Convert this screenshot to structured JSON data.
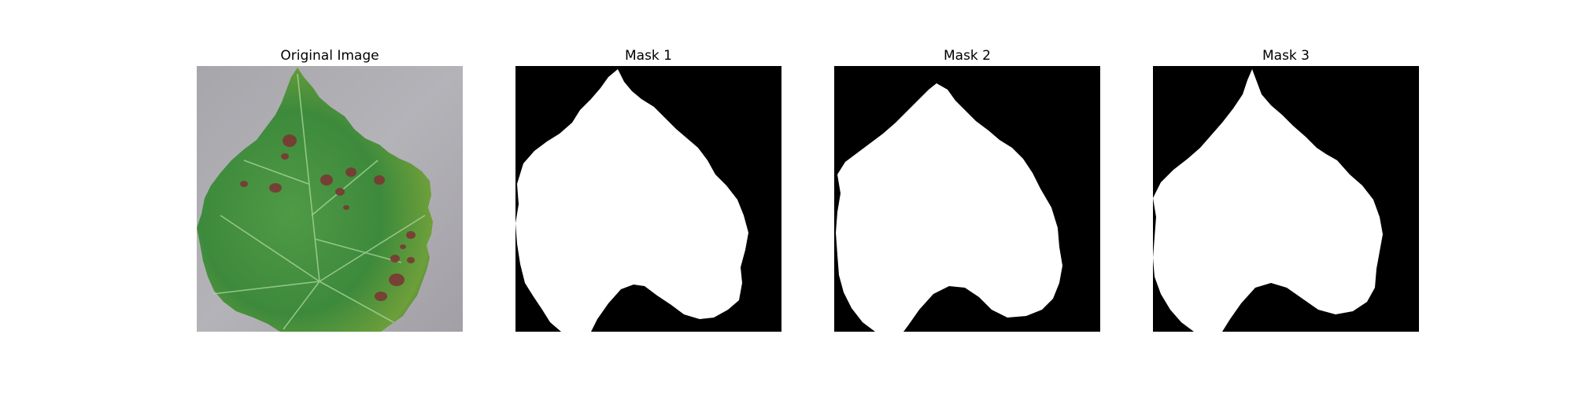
{
  "figure": {
    "panels": [
      {
        "title": "Original Image",
        "content": "grape leaf photograph with brown disease spots on grey background"
      },
      {
        "title": "Mask 1",
        "content": "binary segmentation mask (white leaf on black)"
      },
      {
        "title": "Mask 2",
        "content": "binary segmentation mask (white leaf on black)"
      },
      {
        "title": "Mask 3",
        "content": "binary segmentation mask (white leaf on black)"
      }
    ],
    "colors": {
      "mask_foreground": "#ffffff",
      "mask_background": "#000000",
      "leaf_green": "#3f8a3a",
      "spot_brown": "#7a3a34",
      "photo_background": "#a9a7ad"
    }
  }
}
